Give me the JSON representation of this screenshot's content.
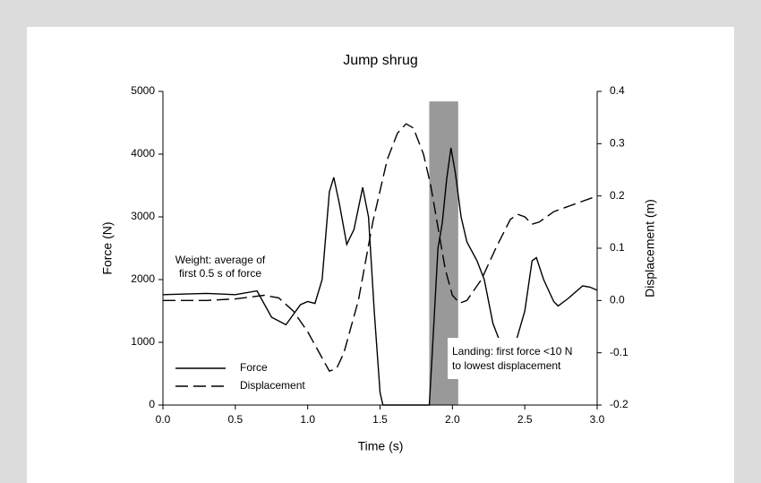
{
  "chart_data": {
    "type": "line",
    "title": "Jump shrug",
    "x_label": "Time (s)",
    "y_label": "Force (N)",
    "y2_label": "Displacement (m)",
    "xlim": [
      0,
      3
    ],
    "xticks": [
      {
        "value": 0,
        "label": "0.0"
      },
      {
        "value": 0.5,
        "label": "0.5"
      },
      {
        "value": 1,
        "label": "1.0"
      },
      {
        "value": 1.5,
        "label": "1.5"
      },
      {
        "value": 2,
        "label": "2.0"
      },
      {
        "value": 2.5,
        "label": "2.5"
      },
      {
        "value": 3,
        "label": "3.0"
      }
    ],
    "ylim": [
      0,
      5000
    ],
    "yticks": [
      0,
      1000,
      2000,
      3000,
      4000,
      5000
    ],
    "y2lim": [
      -0.2,
      0.4
    ],
    "y2ticks": [
      -0.2,
      -0.1,
      {
        "value": 0,
        "label": "0.0"
      },
      0.1,
      0.2,
      0.3,
      0.4
    ],
    "legend": "lower left",
    "shaded_region": {
      "x": [
        1.84,
        2.04
      ],
      "y": [
        0,
        4840
      ],
      "color": "#999999"
    },
    "annotations": [
      {
        "lines": [
          "Weight: average of",
          "first 0.5 s of force"
        ]
      },
      {
        "lines": [
          "Landing: first force <10 N",
          "to lowest displacement"
        ]
      }
    ],
    "series": [
      {
        "name": "Force",
        "color": "#000000",
        "linestyle": "solid",
        "x": [
          0,
          0.3,
          0.5,
          0.65,
          0.75,
          0.85,
          0.95,
          1.0,
          1.05,
          1.1,
          1.15,
          1.18,
          1.22,
          1.27,
          1.32,
          1.38,
          1.42,
          1.46,
          1.5,
          1.52,
          1.6,
          1.7,
          1.84,
          1.86,
          1.9,
          1.93,
          1.96,
          1.99,
          2.02,
          2.06,
          2.1,
          2.17,
          2.22,
          2.28,
          2.33,
          2.4,
          2.5,
          2.55,
          2.58,
          2.63,
          2.7,
          2.73,
          2.8,
          2.9,
          2.95,
          3.0
        ],
        "values": [
          1760,
          1780,
          1760,
          1820,
          1400,
          1280,
          1600,
          1650,
          1620,
          2000,
          3400,
          3630,
          3200,
          2560,
          2800,
          3470,
          3000,
          1500,
          200,
          0,
          0,
          0,
          0,
          800,
          2500,
          2900,
          3600,
          4100,
          3700,
          3000,
          2600,
          2300,
          2000,
          1300,
          1000,
          700,
          1500,
          2300,
          2350,
          2000,
          1650,
          1580,
          1700,
          1900,
          1880,
          1830
        ]
      },
      {
        "name": "Displacement",
        "color": "#000000",
        "linestyle": "dashed",
        "axis": "y2",
        "x": [
          0,
          0.3,
          0.5,
          0.7,
          0.8,
          0.9,
          1.0,
          1.1,
          1.15,
          1.2,
          1.25,
          1.35,
          1.45,
          1.55,
          1.62,
          1.68,
          1.73,
          1.8,
          1.85,
          1.9,
          1.95,
          2.0,
          2.05,
          2.1,
          2.2,
          2.3,
          2.4,
          2.45,
          2.5,
          2.55,
          2.6,
          2.7,
          2.8,
          2.9,
          3.0
        ],
        "values": [
          0,
          0,
          0.003,
          0.01,
          0.005,
          -0.02,
          -0.06,
          -0.11,
          -0.135,
          -0.13,
          -0.1,
          0,
          0.15,
          0.27,
          0.32,
          0.338,
          0.33,
          0.28,
          0.22,
          0.14,
          0.06,
          0.01,
          -0.005,
          0,
          0.04,
          0.1,
          0.155,
          0.165,
          0.16,
          0.146,
          0.15,
          0.17,
          0.18,
          0.19,
          0.2
        ]
      }
    ]
  }
}
